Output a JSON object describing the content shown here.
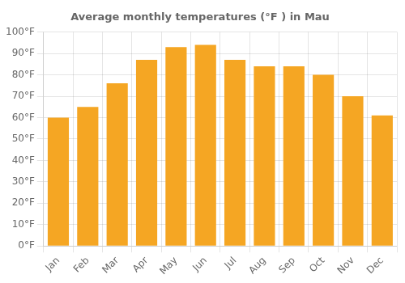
{
  "chart_data": {
    "type": "bar",
    "title": "Average monthly temperatures (°F ) in Mau",
    "categories": [
      "Jan",
      "Feb",
      "Mar",
      "Apr",
      "May",
      "Jun",
      "Jul",
      "Aug",
      "Sep",
      "Oct",
      "Nov",
      "Dec"
    ],
    "values": [
      60,
      65,
      76,
      87,
      93,
      94,
      87,
      84,
      84,
      80,
      70,
      61
    ],
    "color": "#F5A623",
    "ylim": [
      0,
      100
    ],
    "yticks": [
      {
        "value": 0,
        "label": "0°F"
      },
      {
        "value": 10,
        "label": "10°F"
      },
      {
        "value": 20,
        "label": "20°F"
      },
      {
        "value": 30,
        "label": "30°F"
      },
      {
        "value": 40,
        "label": "40°F"
      },
      {
        "value": 50,
        "label": "50°F"
      },
      {
        "value": 60,
        "label": "60°F"
      },
      {
        "value": 70,
        "label": "70°F"
      },
      {
        "value": 80,
        "label": "80°F"
      },
      {
        "value": 90,
        "label": "90°F"
      },
      {
        "value": 100,
        "label": "100°F"
      }
    ],
    "grid": true
  }
}
